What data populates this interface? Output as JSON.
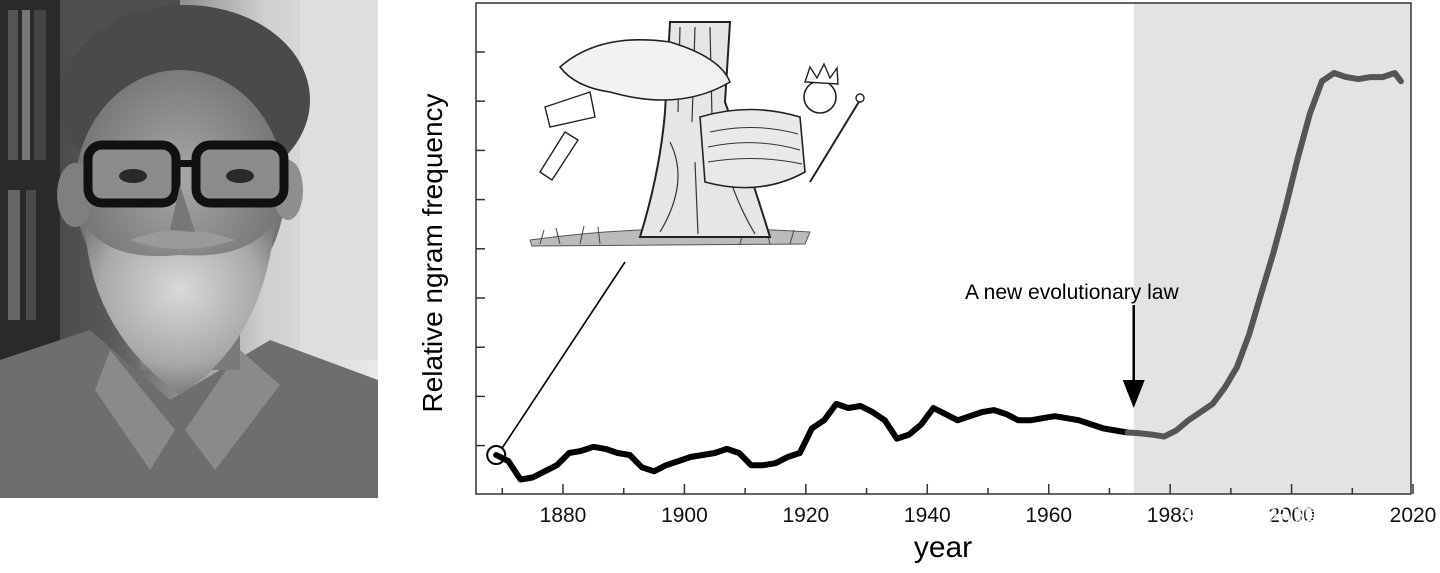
{
  "chart_data": {
    "type": "line",
    "xlabel": "year",
    "ylabel": "Relative ngram frequency",
    "xlim": [
      1866,
      2020
    ],
    "ylim": [
      0,
      10
    ],
    "x_ticks": [
      1880,
      1900,
      1920,
      1940,
      1960,
      1980,
      2000,
      2020
    ],
    "y_tick_labels_shown": false,
    "y_tick_count": 9,
    "shaded_region": {
      "x_start": 1974,
      "x_end": 2020,
      "color": "#e3e3e3"
    },
    "annotation": {
      "text": "A new evolutionary law",
      "x": 1974,
      "arrow": "down"
    },
    "series": [
      {
        "color_before": "#000000",
        "color_after": "#555555",
        "x": [
          1869,
          1871,
          1873,
          1875,
          1877,
          1879,
          1881,
          1883,
          1885,
          1887,
          1889,
          1891,
          1893,
          1895,
          1897,
          1899,
          1901,
          1903,
          1905,
          1907,
          1909,
          1911,
          1913,
          1915,
          1917,
          1919,
          1921,
          1923,
          1925,
          1927,
          1929,
          1931,
          1933,
          1935,
          1937,
          1939,
          1941,
          1943,
          1945,
          1947,
          1949,
          1951,
          1953,
          1955,
          1957,
          1959,
          1961,
          1963,
          1965,
          1967,
          1969,
          1971,
          1973,
          1975,
          1977,
          1979,
          1981,
          1983,
          1985,
          1987,
          1989,
          1991,
          1993,
          1995,
          1997,
          1999,
          2001,
          2003,
          2005,
          2007,
          2009,
          2011,
          2013,
          2015,
          2017,
          2018
        ],
        "y": [
          0.85,
          0.7,
          0.25,
          0.3,
          0.45,
          0.6,
          0.9,
          0.95,
          1.05,
          1.0,
          0.9,
          0.85,
          0.55,
          0.45,
          0.6,
          0.7,
          0.8,
          0.85,
          0.9,
          1.0,
          0.9,
          0.6,
          0.6,
          0.65,
          0.8,
          0.9,
          1.5,
          1.7,
          2.1,
          2.0,
          2.05,
          1.9,
          1.7,
          1.25,
          1.35,
          1.6,
          2.0,
          1.85,
          1.7,
          1.8,
          1.9,
          1.95,
          1.85,
          1.7,
          1.7,
          1.75,
          1.8,
          1.75,
          1.7,
          1.6,
          1.5,
          1.45,
          1.4,
          1.38,
          1.35,
          1.3,
          1.45,
          1.7,
          1.9,
          2.1,
          2.5,
          3.0,
          3.8,
          4.8,
          5.8,
          6.9,
          8.1,
          9.2,
          10.0,
          10.2,
          10.1,
          10.05,
          10.1,
          10.1,
          10.2,
          10.0
        ]
      }
    ]
  },
  "watermark": "知乎 @檀林",
  "images": {
    "portrait": "bearded-man-portrait-photo",
    "illustration": "tree-with-crowned-king-illustration"
  }
}
